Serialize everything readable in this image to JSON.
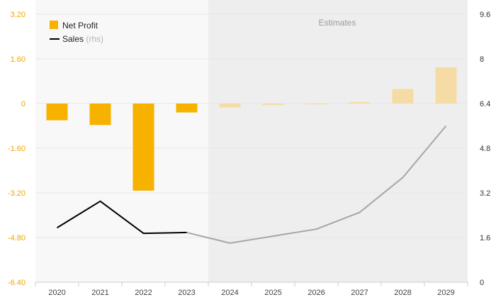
{
  "colors": {
    "bar": "#f7b200",
    "bar_estimate": "#f5dca4",
    "line": "#000000",
    "line_estimate": "#a6a6a6",
    "estimate_bg": "#eeeeee",
    "plot_bg": "#f8f8f8",
    "grid": "#e6e6e6",
    "left_axis_text": "#f0a500"
  },
  "legend": {
    "net_profit": "Net Profit",
    "sales": "Sales",
    "sales_suffix": "(rhs)"
  },
  "estimates_label": "Estimates",
  "chart_data": {
    "type": "bar",
    "categories": [
      "2020",
      "2021",
      "2022",
      "2023",
      "2024",
      "2025",
      "2026",
      "2027",
      "2028",
      "2029"
    ],
    "estimate_start": "2024",
    "left_axis": {
      "ylim": [
        -6.4,
        3.2
      ],
      "ticks": [
        "3.20",
        "1.60",
        "0",
        "-1.60",
        "-3.20",
        "-4.80",
        "-6.40"
      ]
    },
    "right_axis": {
      "ylim": [
        0,
        9.6
      ],
      "ticks": [
        "9.6",
        "8",
        "6.4",
        "4.8",
        "3.2",
        "1.6",
        "0"
      ]
    },
    "series": [
      {
        "name": "Net Profit",
        "type": "bar",
        "axis": "left",
        "values": [
          -0.6,
          -0.77,
          -3.12,
          -0.32,
          -0.14,
          -0.06,
          -0.03,
          0.05,
          0.52,
          1.3
        ]
      },
      {
        "name": "Sales",
        "type": "line",
        "axis": "right",
        "values": [
          1.95,
          2.9,
          1.75,
          1.78,
          1.4,
          1.65,
          1.9,
          2.5,
          3.75,
          5.6
        ]
      }
    ],
    "grid": true,
    "legend_position": "top-left"
  }
}
